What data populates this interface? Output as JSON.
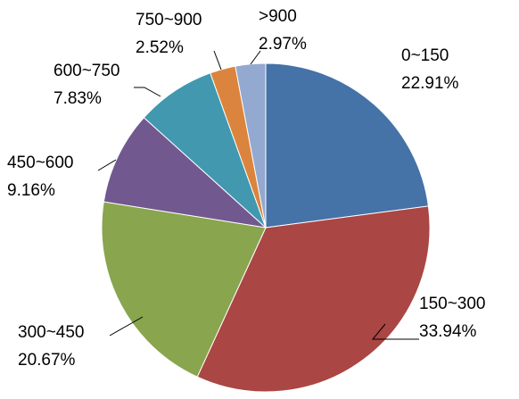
{
  "chart_data": {
    "type": "pie",
    "title": "",
    "start_angle_deg": 0,
    "direction": "clockwise",
    "slices": [
      {
        "label": "0~150",
        "value": 22.91,
        "percent_text": "22.91%",
        "color": "#4572A7"
      },
      {
        "label": "150~300",
        "value": 33.94,
        "percent_text": "33.94%",
        "color": "#AA4643"
      },
      {
        "label": "300~450",
        "value": 20.67,
        "percent_text": "20.67%",
        "color": "#89A54E"
      },
      {
        "label": "450~600",
        "value": 9.16,
        "percent_text": "9.16%",
        "color": "#71588F"
      },
      {
        "label": "600~750",
        "value": 7.83,
        "percent_text": "7.83%",
        "color": "#4198AF"
      },
      {
        "label": "750~900",
        "value": 2.52,
        "percent_text": "2.52%",
        "color": "#DB843D"
      },
      {
        "label": ">900",
        "value": 2.97,
        "percent_text": "2.97%",
        "color": "#93A9CF"
      }
    ],
    "legend": "none",
    "data_labels": "category and percent, outside with leader lines"
  }
}
